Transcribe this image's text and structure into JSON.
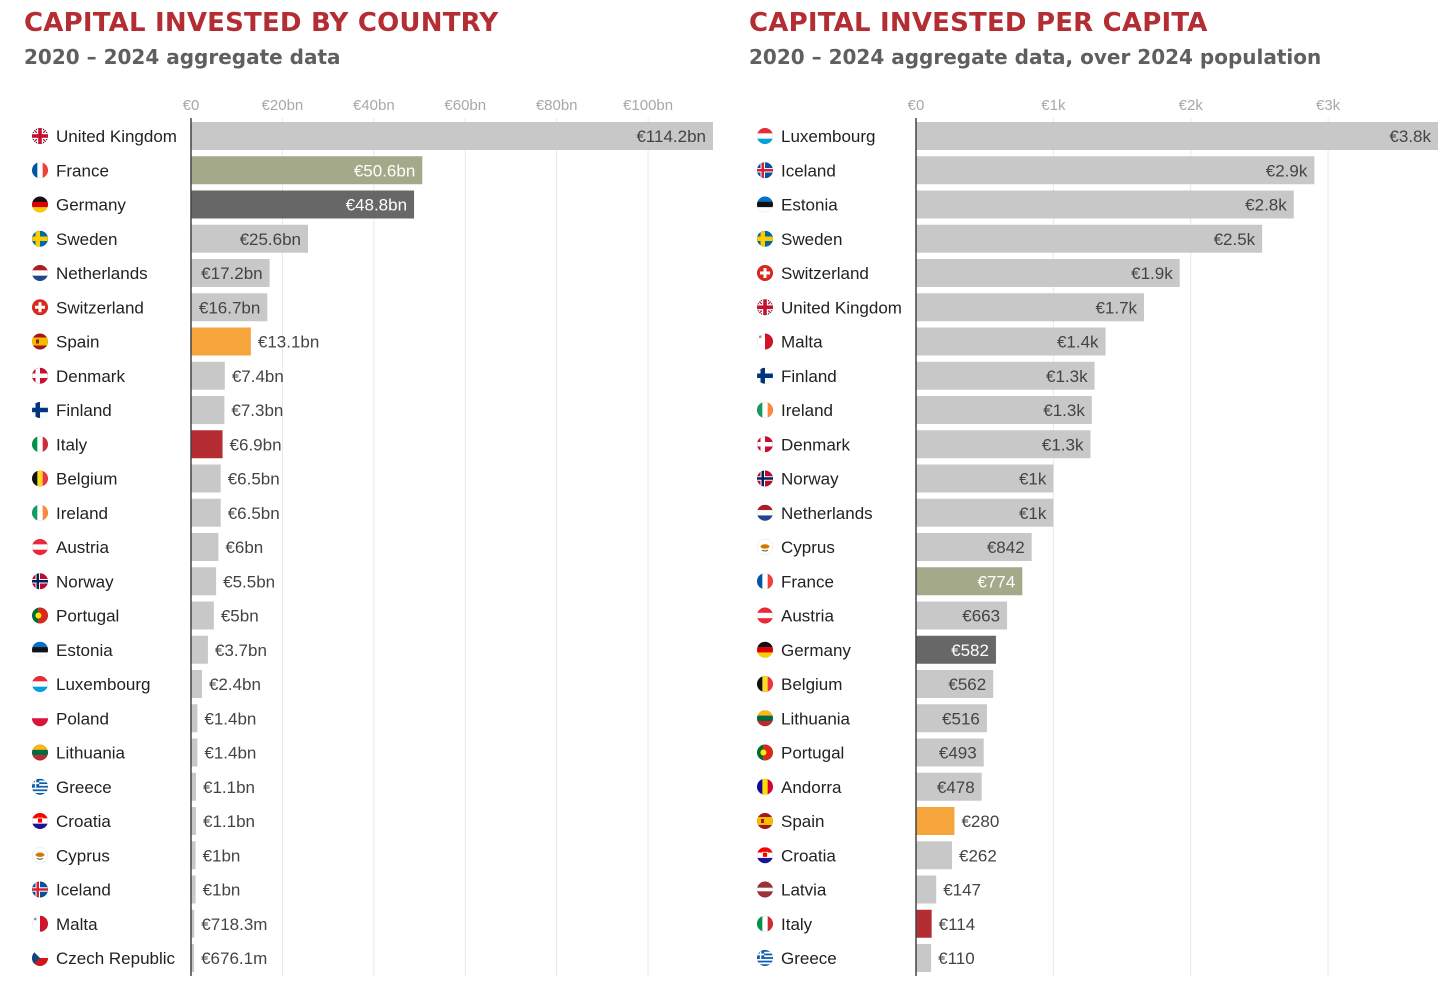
{
  "colors": {
    "default_bar": "#c8c8c8",
    "france_bar": "#a4a98a",
    "germany_bar": "#676767",
    "spain_bar": "#f6a53c",
    "italy_bar": "#b32d33",
    "title": "#b32d33",
    "subtitle": "#5f5f5f",
    "grid": "#e9e9e9",
    "axis": "#444444",
    "label_dark": "#444444",
    "label_light": "#ffffff"
  },
  "chart_data": [
    {
      "type": "bar",
      "orientation": "horizontal",
      "title": "CAPITAL INVESTED BY COUNTRY",
      "subtitle": "2020 – 2024 aggregate data",
      "unit": "EUR billions",
      "xlim": [
        0,
        114.2
      ],
      "ticks": [
        {
          "value": 0,
          "label": "€0"
        },
        {
          "value": 20,
          "label": "€20bn"
        },
        {
          "value": 40,
          "label": "€40bn"
        },
        {
          "value": 60,
          "label": "€60bn"
        },
        {
          "value": 80,
          "label": "€80bn"
        },
        {
          "value": 100,
          "label": "€100bn"
        }
      ],
      "grid": true,
      "bars": [
        {
          "category": "United Kingdom",
          "value": 114.2,
          "label": "€114.2bn",
          "flag": "uk-flag-icon",
          "highlight": "default",
          "label_inside": true
        },
        {
          "category": "France",
          "value": 50.6,
          "label": "€50.6bn",
          "flag": "france-flag-icon",
          "highlight": "france",
          "label_inside": true
        },
        {
          "category": "Germany",
          "value": 48.8,
          "label": "€48.8bn",
          "flag": "germany-flag-icon",
          "highlight": "germany",
          "label_inside": true
        },
        {
          "category": "Sweden",
          "value": 25.6,
          "label": "€25.6bn",
          "flag": "sweden-flag-icon",
          "highlight": "default",
          "label_inside": true
        },
        {
          "category": "Netherlands",
          "value": 17.2,
          "label": "€17.2bn",
          "flag": "netherlands-flag-icon",
          "highlight": "default",
          "label_inside": true
        },
        {
          "category": "Switzerland",
          "value": 16.7,
          "label": "€16.7bn",
          "flag": "switzerland-flag-icon",
          "highlight": "default",
          "label_inside": true
        },
        {
          "category": "Spain",
          "value": 13.1,
          "label": "€13.1bn",
          "flag": "spain-flag-icon",
          "highlight": "spain",
          "label_inside": false
        },
        {
          "category": "Denmark",
          "value": 7.4,
          "label": "€7.4bn",
          "flag": "denmark-flag-icon",
          "highlight": "default",
          "label_inside": false
        },
        {
          "category": "Finland",
          "value": 7.3,
          "label": "€7.3bn",
          "flag": "finland-flag-icon",
          "highlight": "default",
          "label_inside": false
        },
        {
          "category": "Italy",
          "value": 6.9,
          "label": "€6.9bn",
          "flag": "italy-flag-icon",
          "highlight": "italy",
          "label_inside": false
        },
        {
          "category": "Belgium",
          "value": 6.5,
          "label": "€6.5bn",
          "flag": "belgium-flag-icon",
          "highlight": "default",
          "label_inside": false
        },
        {
          "category": "Ireland",
          "value": 6.5,
          "label": "€6.5bn",
          "flag": "ireland-flag-icon",
          "highlight": "default",
          "label_inside": false
        },
        {
          "category": "Austria",
          "value": 6.0,
          "label": "€6bn",
          "flag": "austria-flag-icon",
          "highlight": "default",
          "label_inside": false
        },
        {
          "category": "Norway",
          "value": 5.5,
          "label": "€5.5bn",
          "flag": "norway-flag-icon",
          "highlight": "default",
          "label_inside": false
        },
        {
          "category": "Portugal",
          "value": 5.0,
          "label": "€5bn",
          "flag": "portugal-flag-icon",
          "highlight": "default",
          "label_inside": false
        },
        {
          "category": "Estonia",
          "value": 3.7,
          "label": "€3.7bn",
          "flag": "estonia-flag-icon",
          "highlight": "default",
          "label_inside": false
        },
        {
          "category": "Luxembourg",
          "value": 2.4,
          "label": "€2.4bn",
          "flag": "luxembourg-flag-icon",
          "highlight": "default",
          "label_inside": false
        },
        {
          "category": "Poland",
          "value": 1.4,
          "label": "€1.4bn",
          "flag": "poland-flag-icon",
          "highlight": "default",
          "label_inside": false
        },
        {
          "category": "Lithuania",
          "value": 1.4,
          "label": "€1.4bn",
          "flag": "lithuania-flag-icon",
          "highlight": "default",
          "label_inside": false
        },
        {
          "category": "Greece",
          "value": 1.1,
          "label": "€1.1bn",
          "flag": "greece-flag-icon",
          "highlight": "default",
          "label_inside": false
        },
        {
          "category": "Croatia",
          "value": 1.1,
          "label": "€1.1bn",
          "flag": "croatia-flag-icon",
          "highlight": "default",
          "label_inside": false
        },
        {
          "category": "Cyprus",
          "value": 1.0,
          "label": "€1bn",
          "flag": "cyprus-flag-icon",
          "highlight": "default",
          "label_inside": false
        },
        {
          "category": "Iceland",
          "value": 1.0,
          "label": "€1bn",
          "flag": "iceland-flag-icon",
          "highlight": "default",
          "label_inside": false
        },
        {
          "category": "Malta",
          "value": 0.7183,
          "label": "€718.3m",
          "flag": "malta-flag-icon",
          "highlight": "default",
          "label_inside": false
        },
        {
          "category": "Czech Republic",
          "value": 0.6761,
          "label": "€676.1m",
          "flag": "czech-flag-icon",
          "highlight": "default",
          "label_inside": false
        }
      ]
    },
    {
      "type": "bar",
      "orientation": "horizontal",
      "title": "CAPITAL INVESTED PER CAPITA",
      "subtitle": "2020 – 2024 aggregate data, over 2024 population",
      "unit": "EUR per person",
      "xlim": [
        0,
        3800
      ],
      "ticks": [
        {
          "value": 0,
          "label": "€0"
        },
        {
          "value": 1000,
          "label": "€1k"
        },
        {
          "value": 2000,
          "label": "€2k"
        },
        {
          "value": 3000,
          "label": "€3k"
        }
      ],
      "grid": true,
      "bars": [
        {
          "category": "Luxembourg",
          "value": 3800,
          "label": "€3.8k",
          "flag": "luxembourg-flag-icon",
          "highlight": "default",
          "label_inside": true
        },
        {
          "category": "Iceland",
          "value": 2900,
          "label": "€2.9k",
          "flag": "iceland-flag-icon",
          "highlight": "default",
          "label_inside": true
        },
        {
          "category": "Estonia",
          "value": 2750,
          "label": "€2.8k",
          "flag": "estonia-flag-icon",
          "highlight": "default",
          "label_inside": true
        },
        {
          "category": "Sweden",
          "value": 2520,
          "label": "€2.5k",
          "flag": "sweden-flag-icon",
          "highlight": "default",
          "label_inside": true
        },
        {
          "category": "Switzerland",
          "value": 1920,
          "label": "€1.9k",
          "flag": "switzerland-flag-icon",
          "highlight": "default",
          "label_inside": true
        },
        {
          "category": "United Kingdom",
          "value": 1660,
          "label": "€1.7k",
          "flag": "uk-flag-icon",
          "highlight": "default",
          "label_inside": true
        },
        {
          "category": "Malta",
          "value": 1380,
          "label": "€1.4k",
          "flag": "malta-flag-icon",
          "highlight": "default",
          "label_inside": true
        },
        {
          "category": "Finland",
          "value": 1300,
          "label": "€1.3k",
          "flag": "finland-flag-icon",
          "highlight": "default",
          "label_inside": true
        },
        {
          "category": "Ireland",
          "value": 1280,
          "label": "€1.3k",
          "flag": "ireland-flag-icon",
          "highlight": "default",
          "label_inside": true
        },
        {
          "category": "Denmark",
          "value": 1270,
          "label": "€1.3k",
          "flag": "denmark-flag-icon",
          "highlight": "default",
          "label_inside": true
        },
        {
          "category": "Norway",
          "value": 1000,
          "label": "€1k",
          "flag": "norway-flag-icon",
          "highlight": "default",
          "label_inside": true
        },
        {
          "category": "Netherlands",
          "value": 1000,
          "label": "€1k",
          "flag": "netherlands-flag-icon",
          "highlight": "default",
          "label_inside": true
        },
        {
          "category": "Cyprus",
          "value": 842,
          "label": "€842",
          "flag": "cyprus-flag-icon",
          "highlight": "default",
          "label_inside": true
        },
        {
          "category": "France",
          "value": 774,
          "label": "€774",
          "flag": "france-flag-icon",
          "highlight": "france",
          "label_inside": true
        },
        {
          "category": "Austria",
          "value": 663,
          "label": "€663",
          "flag": "austria-flag-icon",
          "highlight": "default",
          "label_inside": true
        },
        {
          "category": "Germany",
          "value": 582,
          "label": "€582",
          "flag": "germany-flag-icon",
          "highlight": "germany",
          "label_inside": true
        },
        {
          "category": "Belgium",
          "value": 562,
          "label": "€562",
          "flag": "belgium-flag-icon",
          "highlight": "default",
          "label_inside": true
        },
        {
          "category": "Lithuania",
          "value": 516,
          "label": "€516",
          "flag": "lithuania-flag-icon",
          "highlight": "default",
          "label_inside": true
        },
        {
          "category": "Portugal",
          "value": 493,
          "label": "€493",
          "flag": "portugal-flag-icon",
          "highlight": "default",
          "label_inside": true
        },
        {
          "category": "Andorra",
          "value": 478,
          "label": "€478",
          "flag": "andorra-flag-icon",
          "highlight": "default",
          "label_inside": true
        },
        {
          "category": "Spain",
          "value": 280,
          "label": "€280",
          "flag": "spain-flag-icon",
          "highlight": "spain",
          "label_inside": false
        },
        {
          "category": "Croatia",
          "value": 262,
          "label": "€262",
          "flag": "croatia-flag-icon",
          "highlight": "default",
          "label_inside": false
        },
        {
          "category": "Latvia",
          "value": 147,
          "label": "€147",
          "flag": "latvia-flag-icon",
          "highlight": "default",
          "label_inside": false
        },
        {
          "category": "Italy",
          "value": 114,
          "label": "€114",
          "flag": "italy-flag-icon",
          "highlight": "italy",
          "label_inside": false
        },
        {
          "category": "Greece",
          "value": 110,
          "label": "€110",
          "flag": "greece-flag-icon",
          "highlight": "default",
          "label_inside": false
        }
      ]
    }
  ]
}
